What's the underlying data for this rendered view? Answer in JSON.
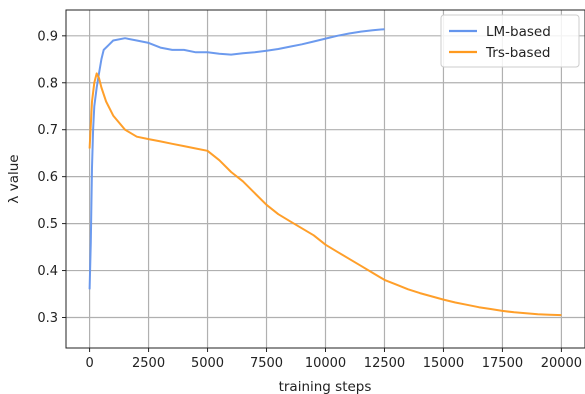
{
  "chart_data": {
    "type": "line",
    "xlabel": "training steps",
    "ylabel": "λ value",
    "xlim": [
      -1000,
      21000
    ],
    "ylim": [
      0.235,
      0.955
    ],
    "x_ticks": [
      0,
      2500,
      5000,
      7500,
      10000,
      12500,
      15000,
      17500,
      20000
    ],
    "y_ticks": [
      0.3,
      0.4,
      0.5,
      0.6,
      0.7,
      0.8,
      0.9
    ],
    "grid": true,
    "legend_position": "top-right",
    "series": [
      {
        "name": "LM-based",
        "color": "#6495ed",
        "x": [
          0,
          50,
          100,
          150,
          200,
          300,
          400,
          500,
          600,
          800,
          1000,
          1500,
          2000,
          2500,
          3000,
          3500,
          4000,
          4500,
          5000,
          5500,
          6000,
          6500,
          7000,
          7500,
          8000,
          8500,
          9000,
          9500,
          10000,
          10500,
          11000,
          11500,
          12000,
          12500
        ],
        "y": [
          0.36,
          0.46,
          0.62,
          0.7,
          0.75,
          0.79,
          0.82,
          0.85,
          0.87,
          0.88,
          0.89,
          0.895,
          0.89,
          0.885,
          0.875,
          0.87,
          0.87,
          0.865,
          0.865,
          0.862,
          0.86,
          0.863,
          0.865,
          0.868,
          0.872,
          0.877,
          0.882,
          0.888,
          0.894,
          0.9,
          0.905,
          0.909,
          0.912,
          0.914
        ]
      },
      {
        "name": "Trs-based",
        "color": "#ff9a1f",
        "x": [
          0,
          100,
          200,
          300,
          400,
          500,
          700,
          1000,
          1500,
          2000,
          2500,
          3000,
          3500,
          4000,
          4500,
          5000,
          5500,
          6000,
          6500,
          7000,
          7500,
          8000,
          8500,
          9000,
          9500,
          10000,
          10500,
          11000,
          11500,
          12000,
          12500,
          13000,
          13500,
          14000,
          14500,
          15000,
          15500,
          16000,
          16500,
          17000,
          17500,
          18000,
          18500,
          19000,
          19500,
          20000
        ],
        "y": [
          0.66,
          0.76,
          0.8,
          0.82,
          0.81,
          0.79,
          0.76,
          0.73,
          0.7,
          0.685,
          0.68,
          0.675,
          0.67,
          0.665,
          0.66,
          0.655,
          0.635,
          0.61,
          0.59,
          0.565,
          0.54,
          0.52,
          0.505,
          0.49,
          0.475,
          0.455,
          0.44,
          0.425,
          0.41,
          0.395,
          0.38,
          0.37,
          0.36,
          0.352,
          0.345,
          0.338,
          0.332,
          0.327,
          0.322,
          0.318,
          0.314,
          0.311,
          0.309,
          0.307,
          0.306,
          0.305
        ]
      }
    ]
  }
}
